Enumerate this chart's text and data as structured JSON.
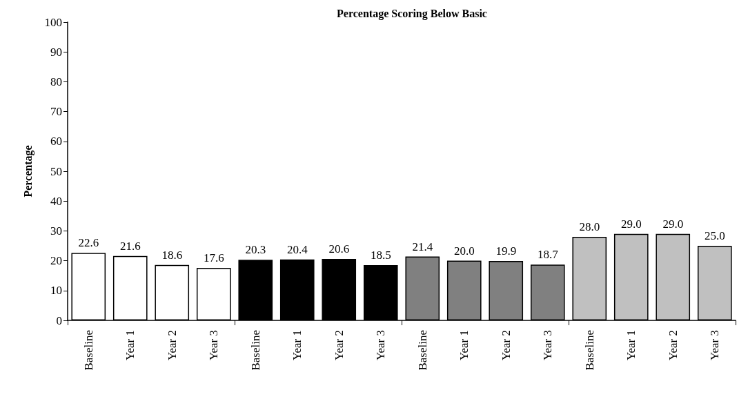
{
  "chart_data": {
    "type": "bar",
    "title": "Percentage Scoring Below Basic",
    "ylabel": "Percentage",
    "categories": [
      "Baseline",
      "Year 1",
      "Year 2",
      "Year 3",
      "Baseline",
      "Year 1",
      "Year 2",
      "Year 3",
      "Baseline",
      "Year 1",
      "Year 2",
      "Year 3",
      "Baseline",
      "Year 1",
      "Year 2",
      "Year 3"
    ],
    "values": [
      22.6,
      21.6,
      18.6,
      17.6,
      20.3,
      20.4,
      20.6,
      18.5,
      21.4,
      20.0,
      19.9,
      18.7,
      28.0,
      29.0,
      29.0,
      25.0
    ],
    "value_labels": [
      "22.6",
      "21.6",
      "18.6",
      "17.6",
      "20.3",
      "20.4",
      "20.6",
      "18.5",
      "21.4",
      "20.0",
      "19.9",
      "18.7",
      "28.0",
      "29.0",
      "29.0",
      "25.0"
    ],
    "colors": [
      "#ffffff",
      "#ffffff",
      "#ffffff",
      "#ffffff",
      "#000000",
      "#000000",
      "#000000",
      "#000000",
      "#808080",
      "#808080",
      "#808080",
      "#808080",
      "#c0c0c0",
      "#c0c0c0",
      "#c0c0c0",
      "#c0c0c0"
    ],
    "ylim": [
      0,
      100
    ],
    "yticks": [
      0,
      10,
      20,
      30,
      40,
      50,
      60,
      70,
      80,
      90,
      100
    ],
    "grid": false
  }
}
